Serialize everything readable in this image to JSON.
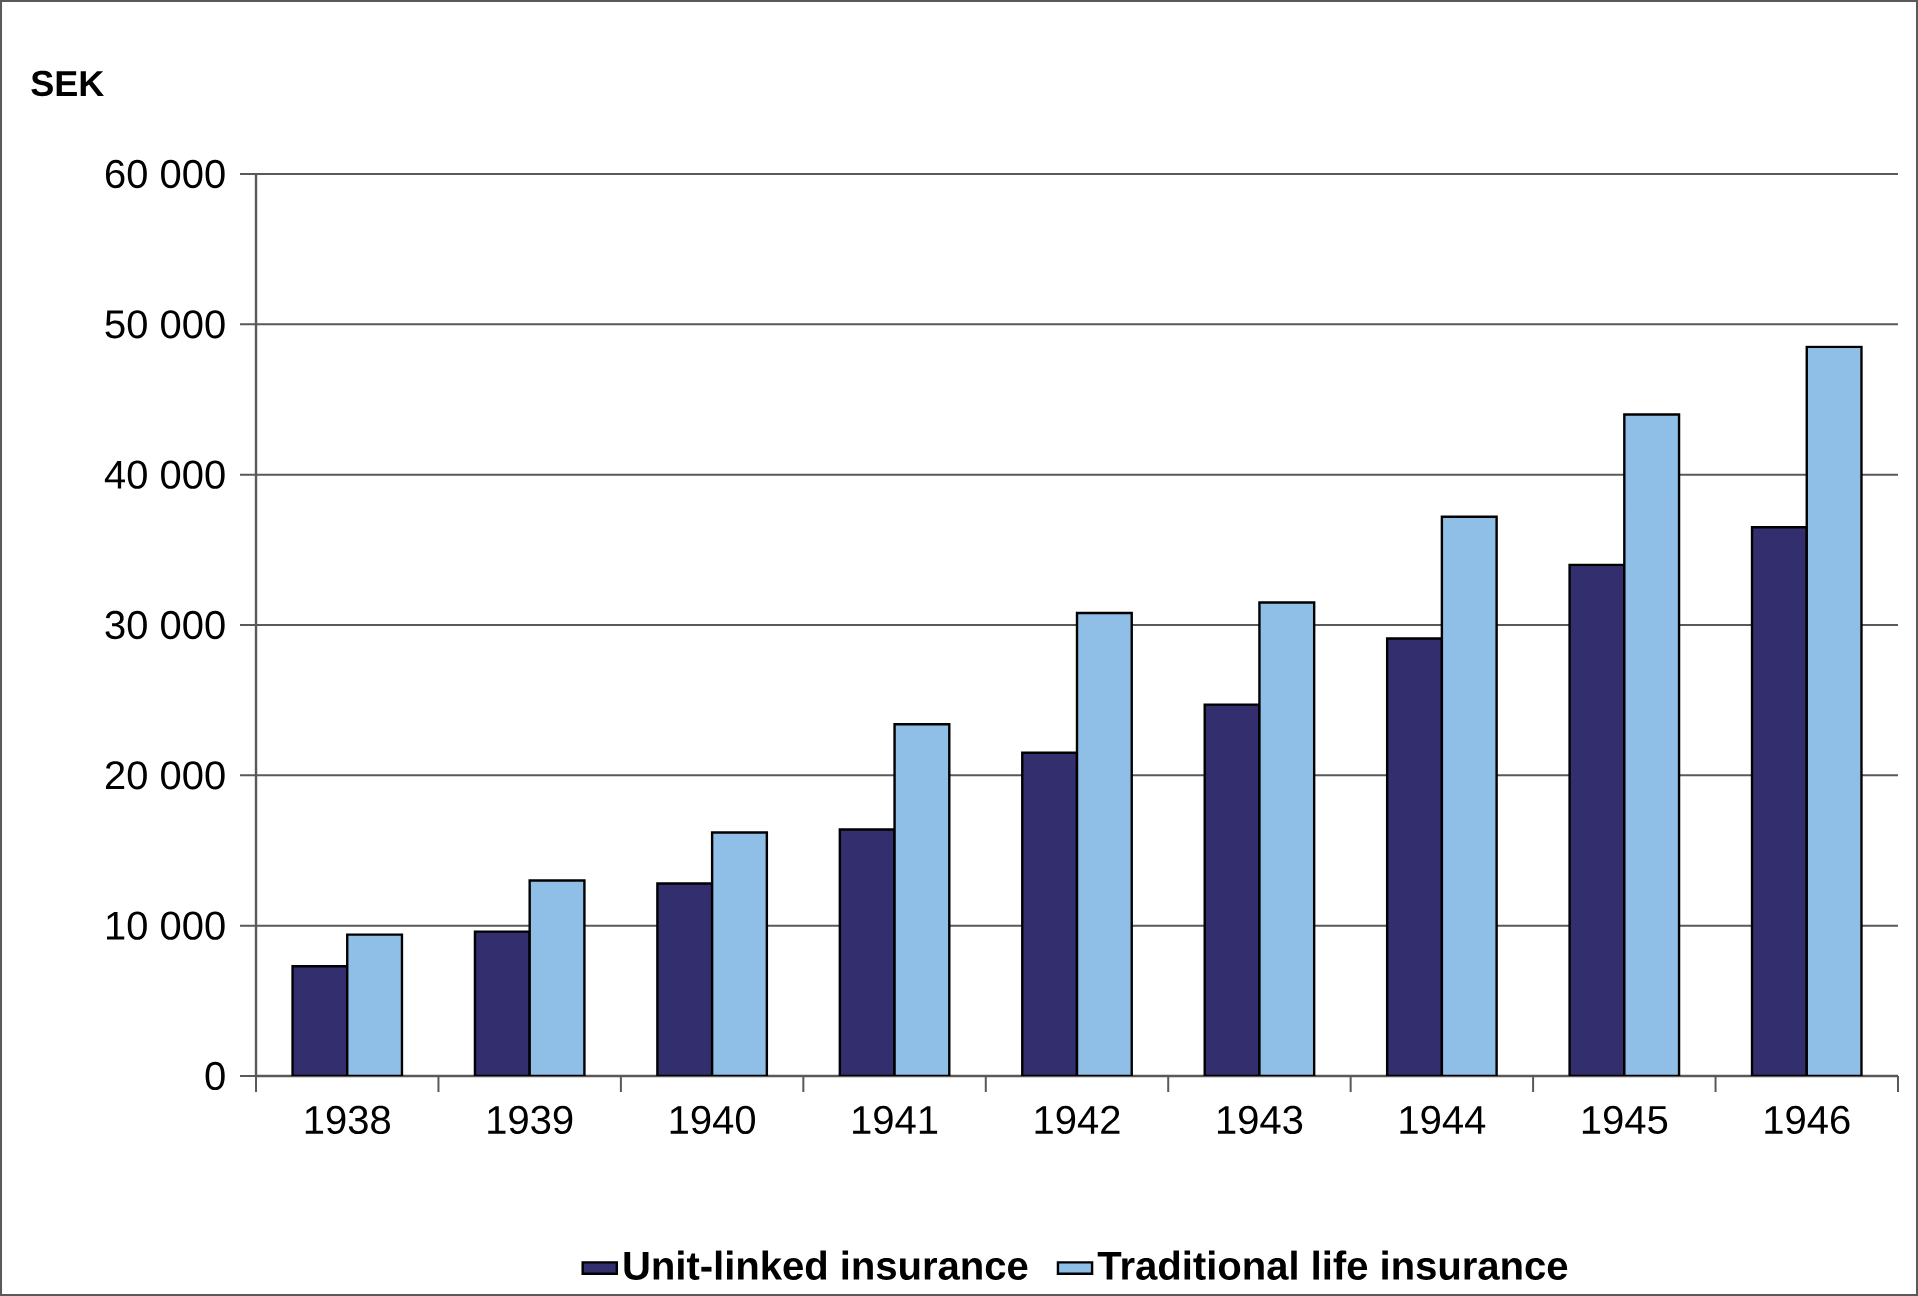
{
  "chart_data": {
    "type": "bar",
    "ylabel": "SEK",
    "categories": [
      "1938",
      "1939",
      "1940",
      "1941",
      "1942",
      "1943",
      "1944",
      "1945",
      "1946"
    ],
    "series": [
      {
        "name": "Unit-linked insurance",
        "color": "#332e6e",
        "values": [
          7300,
          9600,
          12800,
          16400,
          21500,
          24700,
          29100,
          34000,
          36500
        ]
      },
      {
        "name": "Traditional life insurance",
        "color": "#8fbfe6",
        "values": [
          9400,
          13000,
          16200,
          23400,
          30800,
          31500,
          37200,
          44000,
          48500
        ]
      }
    ],
    "ylim": [
      0,
      60000
    ],
    "yticks": [
      {
        "value": 0,
        "label": "0"
      },
      {
        "value": 10000,
        "label": "10 000"
      },
      {
        "value": 20000,
        "label": "20 000"
      },
      {
        "value": 30000,
        "label": "30 000"
      },
      {
        "value": 40000,
        "label": "40 000"
      },
      {
        "value": 50000,
        "label": "50 000"
      },
      {
        "value": 60000,
        "label": "60 000"
      }
    ],
    "grid": "y",
    "legend": "bottom"
  }
}
